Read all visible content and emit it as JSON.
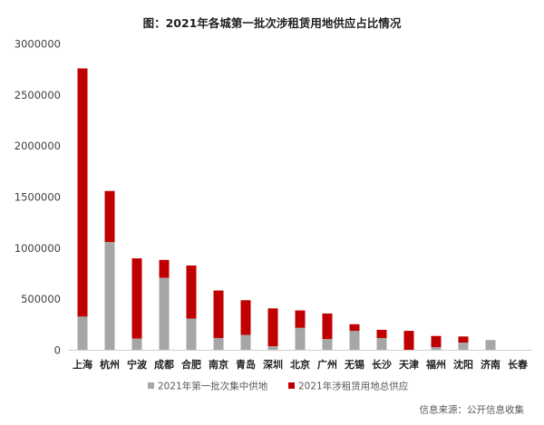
{
  "chart_data": {
    "type": "bar",
    "stacked": true,
    "title": "图：2021年各城第一批次涉租赁用地供应占比情况",
    "xlabel": "",
    "ylabel": "",
    "ylim": [
      0,
      3000000
    ],
    "yticks": [
      0,
      500000,
      1000000,
      1500000,
      2000000,
      2500000,
      3000000
    ],
    "ytick_labels": [
      "0",
      "500000",
      "1000000",
      "1500000",
      "2000000",
      "2500000",
      "3000000"
    ],
    "grid": false,
    "legend": "bottom-center",
    "categories": [
      "上海",
      "杭州",
      "宁波",
      "成都",
      "合肥",
      "南京",
      "青岛",
      "深圳",
      "北京",
      "广州",
      "无锡",
      "长沙",
      "天津",
      "福州",
      "沈阳",
      "济南",
      "长春"
    ],
    "series": [
      {
        "name": "2021年第一批次集中供地",
        "color": "#a6a6a6",
        "values": [
          330000,
          1060000,
          115000,
          710000,
          310000,
          120000,
          150000,
          40000,
          220000,
          110000,
          190000,
          120000,
          0,
          30000,
          75000,
          100000,
          0
        ]
      },
      {
        "name": "2021年涉租赁用地总供应",
        "color": "#c00000",
        "values": [
          2430000,
          500000,
          785000,
          175000,
          520000,
          465000,
          340000,
          370000,
          170000,
          250000,
          65000,
          80000,
          190000,
          110000,
          60000,
          0,
          0
        ]
      }
    ]
  },
  "source_note": "信息来源：公开信息收集"
}
